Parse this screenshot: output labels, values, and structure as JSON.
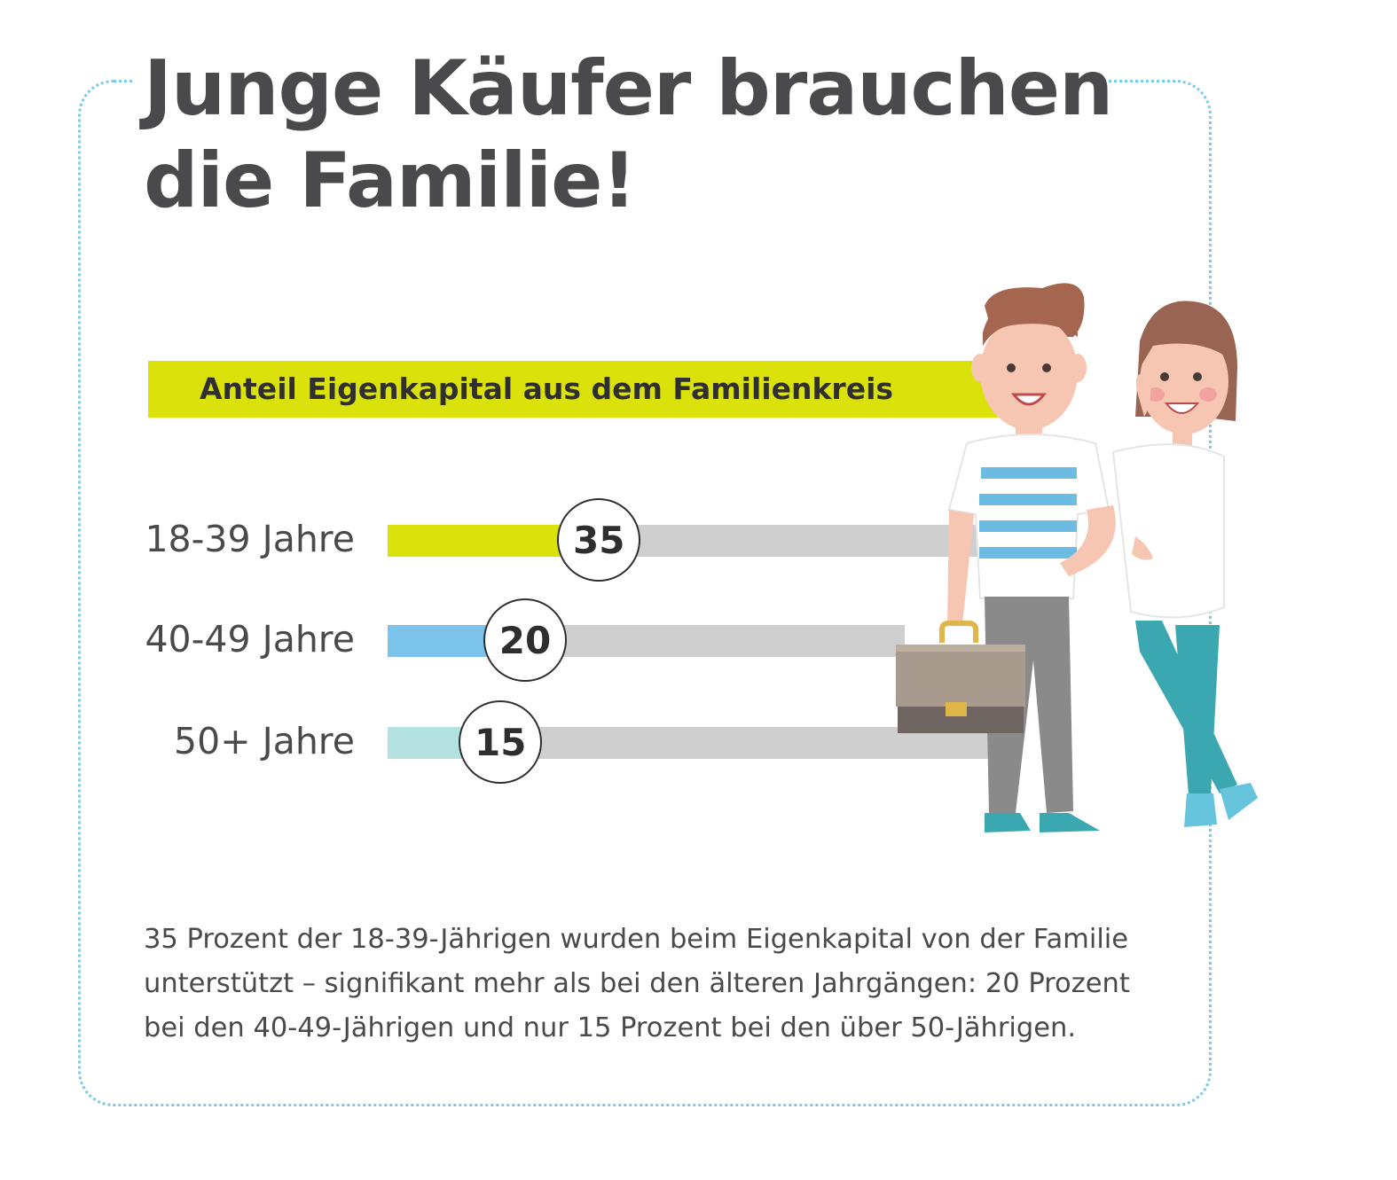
{
  "colors": {
    "accent_yellow": "#dbe10a",
    "accent_blue": "#7cc3ec",
    "accent_teal": "#b4e2e0",
    "track_gray": "#cfcfd0",
    "frame_dots": "#7ec8ea",
    "text": "#4a4a4d"
  },
  "title": {
    "line1": "Junge Käufer brauchen",
    "line2": "die Familie!"
  },
  "chart_data": {
    "type": "bar",
    "title": "Anteil Eigenkapital aus dem Familienkreis",
    "categories": [
      "18-39 Jahre",
      "40-49 Jahre",
      "50+ Jahre"
    ],
    "values": [
      35,
      20,
      15
    ],
    "value_labels": [
      "35",
      "20",
      "15"
    ],
    "colors": [
      "#dbe10a",
      "#7cc3ec",
      "#b4e2e0"
    ],
    "xlim": [
      0,
      100
    ],
    "orientation": "horizontal",
    "grid": false
  },
  "illustration": {
    "icon": "couple-with-briefcase-illustration"
  },
  "description": {
    "line1": "35 Prozent der 18-39-Jährigen wurden beim Eigenkapital von der Familie",
    "line2": "unterstützt – signifikant mehr als bei den älteren Jahrgängen: 20 Prozent",
    "line3": "bei den 40-49-Jährigen und nur 15 Prozent bei den über 50-Jährigen."
  }
}
